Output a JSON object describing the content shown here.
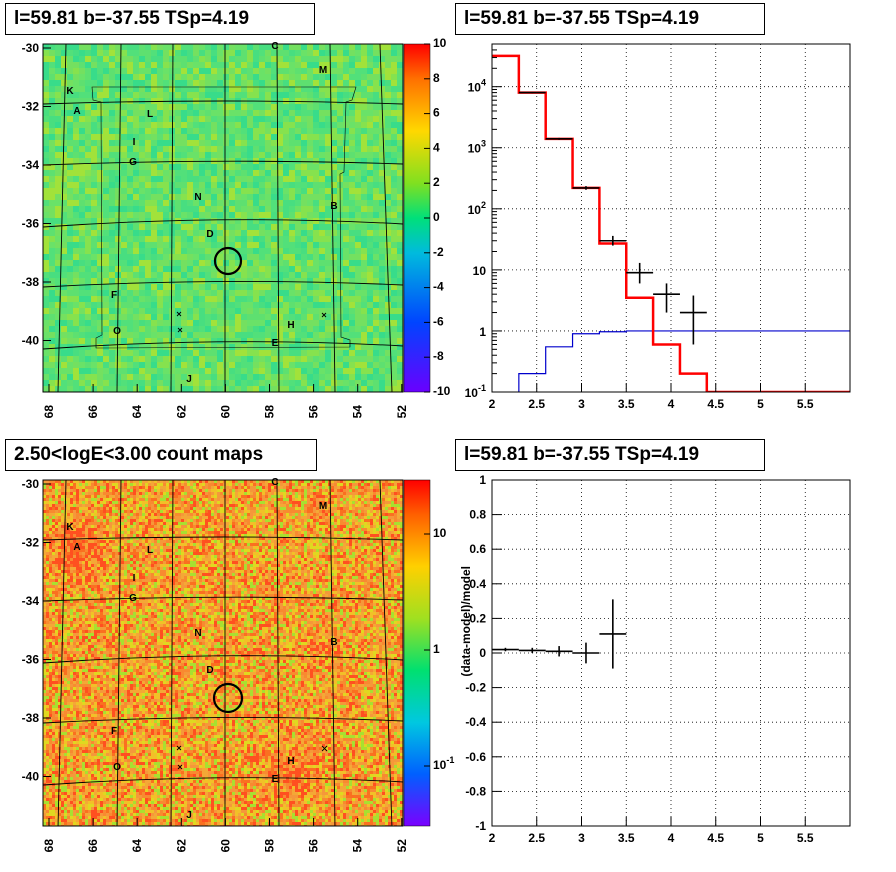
{
  "panels": {
    "tl_title": "l=59.81 b=-37.55 TSp=4.19",
    "tr_title": "l=59.81 b=-37.55 TSp=4.19",
    "bl_title": "2.50<logE<3.00 count maps",
    "br_title": "l=59.81 b=-37.55 TSp=4.19"
  },
  "colors": {
    "model": "#ff0000",
    "background": "#0000cc",
    "data": "#000000"
  },
  "chart_data": [
    {
      "type": "heatmap",
      "title": "l=59.81 b=-37.55 TSp=4.19",
      "x_ticks": [
        "68",
        "66",
        "64",
        "62",
        "60",
        "58",
        "56",
        "54",
        "52"
      ],
      "y_ticks": [
        "-30",
        "-32",
        "-34",
        "-36",
        "-38",
        "-40"
      ],
      "colorbar_ticks": [
        "10",
        "8",
        "6",
        "4",
        "2",
        "0",
        "-2",
        "-4",
        "-6",
        "-8",
        "-10"
      ],
      "zlim": [
        -10,
        10
      ],
      "source_labels": [
        "C",
        "M",
        "K",
        "A",
        "L",
        "I",
        "G",
        "N",
        "B",
        "D",
        "F",
        "H",
        "O",
        "E",
        "J"
      ],
      "grid": true
    },
    {
      "type": "line",
      "title": "l=59.81 b=-37.55 TSp=4.19",
      "yscale": "log",
      "xlim": [
        2,
        6
      ],
      "ylim": [
        0.1,
        50000
      ],
      "x_ticks": [
        "2",
        "2.5",
        "3",
        "3.5",
        "4",
        "4.5",
        "5",
        "5.5"
      ],
      "y_ticks": [
        "10^-1",
        "1",
        "10",
        "10^2",
        "10^3",
        "10^4"
      ],
      "grid": true,
      "series": [
        {
          "bins": [
            2.0,
            2.3,
            2.6,
            2.9,
            3.2,
            3.5,
            3.8,
            4.1,
            4.4,
            4.7,
            5.0,
            5.3,
            5.6,
            6.0
          ],
          "values": [
            32000,
            8000,
            1400,
            220,
            27,
            3.5,
            0.6,
            0.2,
            0.1,
            0.1,
            0.1,
            0.1,
            0.1
          ]
        },
        {
          "bins": [
            2.0,
            2.3,
            2.6,
            2.9,
            3.2,
            3.5,
            3.8,
            4.1,
            4.4,
            4.7,
            5.0,
            5.3,
            5.6,
            6.0
          ],
          "values": [
            0.05,
            0.2,
            0.55,
            0.9,
            0.97,
            1.0,
            1.0,
            1.0,
            1.0,
            1.0,
            1.0,
            1.0,
            1.0
          ]
        }
      ],
      "data_points": [
        {
          "x": 2.45,
          "y": 8000,
          "xerr": 0.15,
          "ylo": 7800,
          "yhi": 8200
        },
        {
          "x": 2.75,
          "y": 1400,
          "xerr": 0.15,
          "ylo": 1350,
          "yhi": 1450
        },
        {
          "x": 3.05,
          "y": 220,
          "xerr": 0.15,
          "ylo": 205,
          "yhi": 235
        },
        {
          "x": 3.35,
          "y": 30,
          "xerr": 0.15,
          "ylo": 25,
          "yhi": 36
        },
        {
          "x": 3.65,
          "y": 9,
          "xerr": 0.15,
          "ylo": 6,
          "yhi": 13
        },
        {
          "x": 3.95,
          "y": 4,
          "xerr": 0.15,
          "ylo": 2,
          "yhi": 6
        },
        {
          "x": 4.25,
          "y": 2,
          "xerr": 0.15,
          "ylo": 0.6,
          "yhi": 3.8
        }
      ]
    },
    {
      "type": "heatmap",
      "title": "2.50<logE<3.00 count maps",
      "x_ticks": [
        "68",
        "66",
        "64",
        "62",
        "60",
        "58",
        "56",
        "54",
        "52"
      ],
      "y_ticks": [
        "-30",
        "-32",
        "-34",
        "-36",
        "-38",
        "-40"
      ],
      "colorbar_ticks": [
        "10",
        "1",
        "10^-1"
      ],
      "zscale": "log",
      "source_labels": [
        "C",
        "M",
        "K",
        "A",
        "L",
        "I",
        "G",
        "N",
        "B",
        "D",
        "F",
        "H",
        "O",
        "E",
        "J"
      ],
      "grid": true
    },
    {
      "type": "scatter",
      "title": "l=59.81 b=-37.55 TSp=4.19",
      "ylabel": "(data-model)/model",
      "xlim": [
        2,
        6
      ],
      "ylim": [
        -1,
        1
      ],
      "x_ticks": [
        "2",
        "2.5",
        "3",
        "3.5",
        "4",
        "4.5",
        "5",
        "5.5"
      ],
      "y_ticks": [
        "1",
        "0.8",
        "0.6",
        "0.4",
        "0.2",
        "0",
        "-0.2",
        "-0.4",
        "-0.6",
        "-0.8",
        "-1"
      ],
      "grid": true,
      "data_points": [
        {
          "x": 2.15,
          "y": 0.02,
          "xerr": 0.15,
          "yerr": 0.01
        },
        {
          "x": 2.45,
          "y": 0.015,
          "xerr": 0.15,
          "yerr": 0.015
        },
        {
          "x": 2.75,
          "y": 0.01,
          "xerr": 0.15,
          "yerr": 0.03
        },
        {
          "x": 3.05,
          "y": 0.0,
          "xerr": 0.15,
          "yerr": 0.06
        },
        {
          "x": 3.35,
          "y": 0.11,
          "xerr": 0.15,
          "yerr": 0.2
        }
      ]
    }
  ]
}
